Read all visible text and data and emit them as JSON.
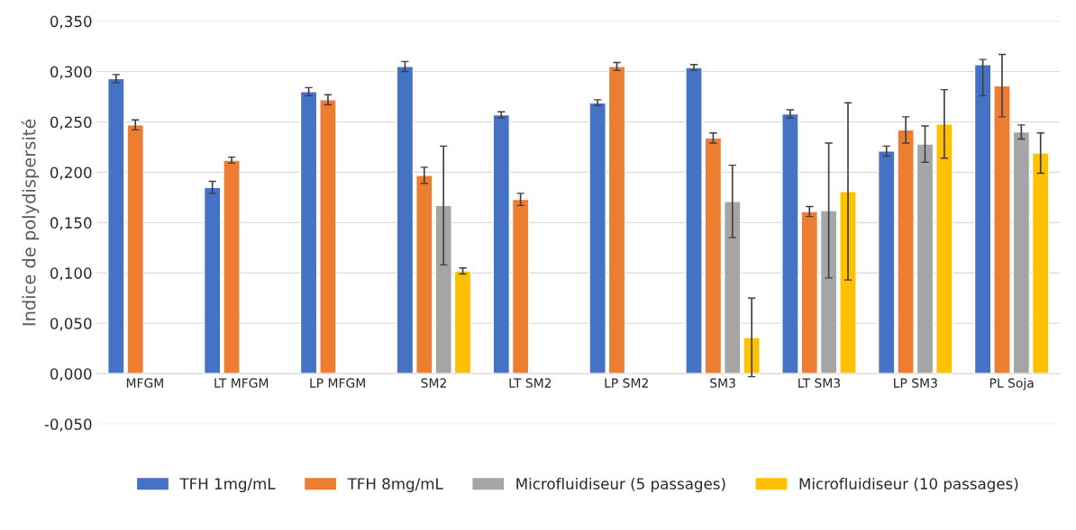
{
  "chart_data": {
    "type": "bar",
    "ylabel": "Indice de polydispersité",
    "categories": [
      "MFGM",
      "LT MFGM",
      "LP MFGM",
      "SM2",
      "LT SM2",
      "LP SM2",
      "SM3",
      "LT SM3",
      "LP SM3",
      "PL Soja"
    ],
    "series": [
      {
        "name": "TFH 1mg/mL",
        "color": "#4472c4",
        "values": [
          0.293,
          0.185,
          0.28,
          0.305,
          0.257,
          0.269,
          0.304,
          0.258,
          0.221,
          0.307
        ],
        "errors": [
          0.004,
          0.006,
          0.004,
          0.005,
          0.003,
          0.003,
          0.003,
          0.004,
          0.005,
          [
            0.276,
            0.312
          ]
        ]
      },
      {
        "name": "TFH 8mg/mL",
        "color": "#ed7d31",
        "values": [
          0.247,
          0.212,
          0.272,
          0.197,
          0.173,
          0.305,
          0.234,
          0.161,
          0.242,
          0.286
        ],
        "errors": [
          0.005,
          0.003,
          0.005,
          0.008,
          0.006,
          0.004,
          0.005,
          0.005,
          0.013,
          0.031
        ]
      },
      {
        "name": "Microfluidiseur (5 passages)",
        "color": "#a5a5a5",
        "values": [
          null,
          null,
          null,
          0.167,
          null,
          null,
          0.171,
          0.162,
          0.228,
          0.24
        ],
        "errors": [
          null,
          null,
          null,
          0.059,
          null,
          null,
          0.036,
          0.067,
          0.018,
          0.007
        ]
      },
      {
        "name": "Microfluidiseur (10 passages)",
        "color": "#ffc000",
        "values": [
          null,
          null,
          null,
          0.102,
          null,
          null,
          0.036,
          0.181,
          0.248,
          0.219
        ],
        "errors": [
          null,
          null,
          null,
          0.003,
          null,
          null,
          0.039,
          0.088,
          0.034,
          0.02
        ]
      }
    ],
    "ylim": [
      -0.05,
      0.35
    ],
    "yticks": [
      {
        "value": -0.05,
        "label": "-0,050"
      },
      {
        "value": 0,
        "label": "0,000"
      },
      {
        "value": 0.05,
        "label": "0,050"
      },
      {
        "value": 0.1,
        "label": "0,100"
      },
      {
        "value": 0.15,
        "label": "0,150"
      },
      {
        "value": 0.2,
        "label": "0,200"
      },
      {
        "value": 0.25,
        "label": "0,250"
      },
      {
        "value": 0.3,
        "label": "0,300"
      },
      {
        "value": 0.35,
        "label": "0,350"
      }
    ],
    "grid": "y",
    "legend": "bottom"
  }
}
